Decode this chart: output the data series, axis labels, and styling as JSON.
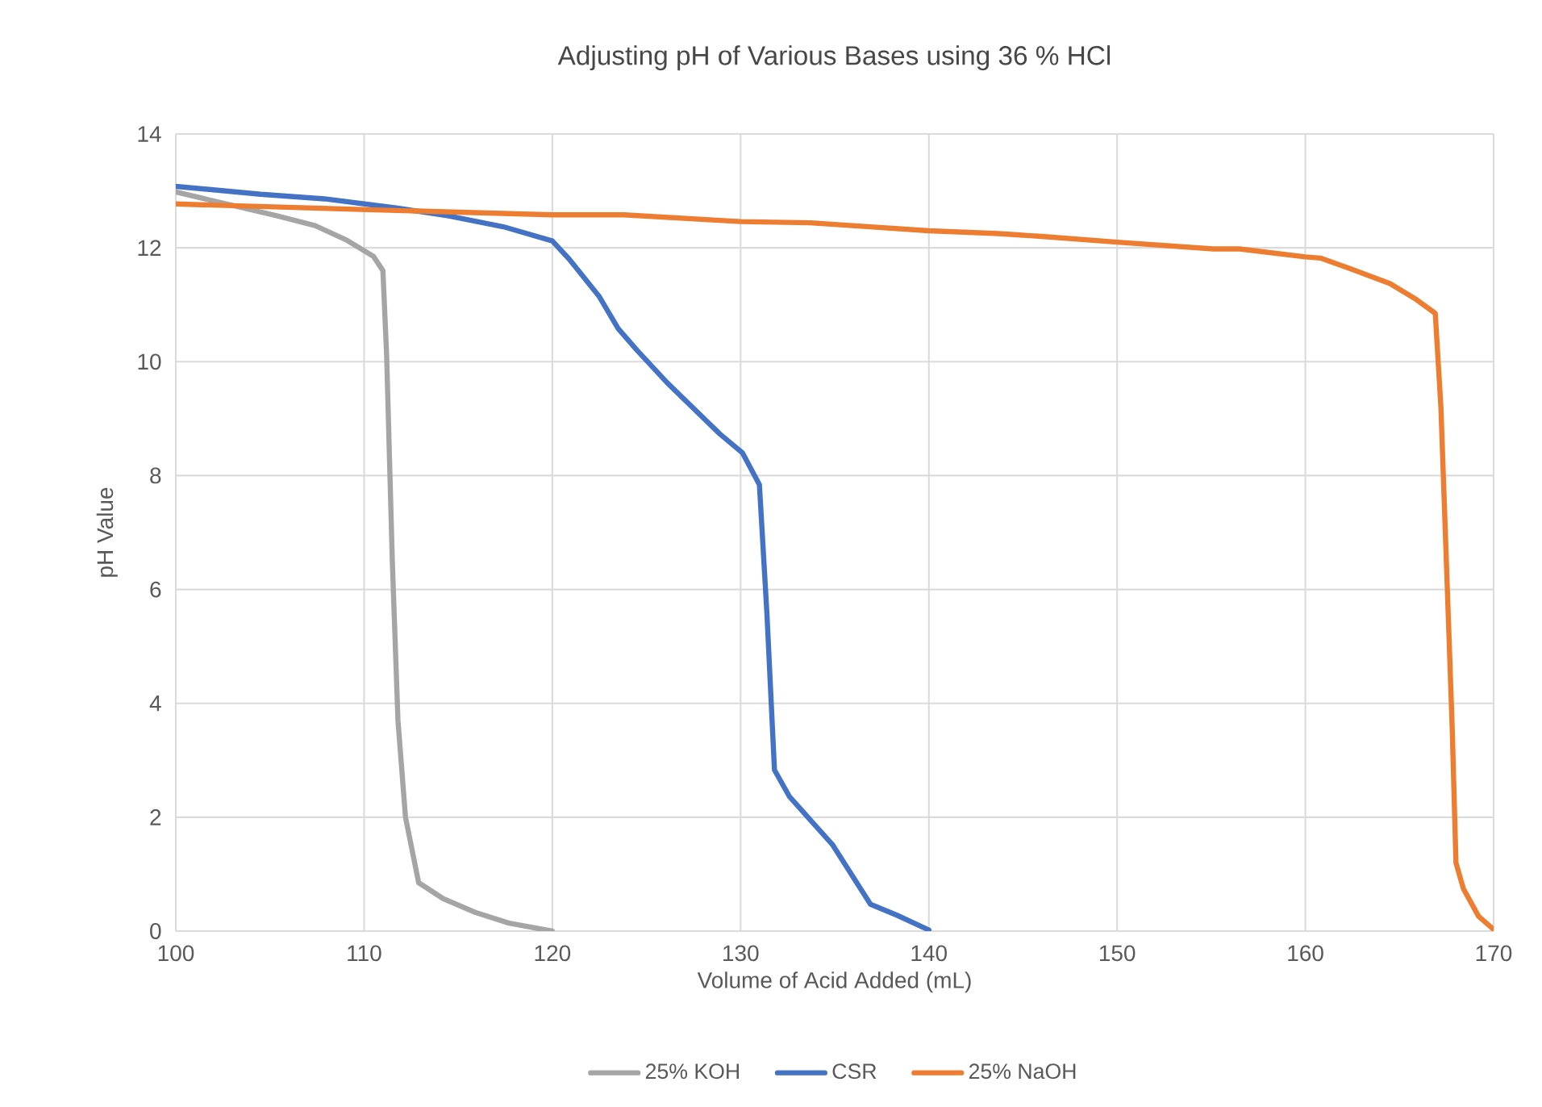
{
  "chart_data": {
    "type": "line",
    "title": "Adjusting pH of Various Bases using 36 % HCl",
    "xlabel": "Volume of Acid Added (mL)",
    "ylabel": "pH Value",
    "xlim": [
      100,
      170
    ],
    "xticks": [
      100,
      110,
      120,
      130,
      140,
      150,
      160,
      170
    ],
    "ylim": [
      0,
      14
    ],
    "yticks": [
      0,
      2,
      4,
      6,
      8,
      10,
      12,
      14
    ],
    "grid": true,
    "legend": "bottom",
    "series": [
      {
        "name": "25% KOH",
        "color": "#a5a5a5",
        "x": [
          100,
          105.4,
          107.4,
          109.1,
          110.5,
          111,
          111.2,
          111.5,
          111.8,
          112.2,
          112.9,
          114.2,
          115.9,
          117.7,
          120
        ],
        "values": [
          12.98,
          12.56,
          12.39,
          12.13,
          11.85,
          11.6,
          10.1,
          6.5,
          3.7,
          2,
          0.85,
          0.57,
          0.33,
          0.14,
          0
        ]
      },
      {
        "name": "CSR",
        "color": "#4472c4",
        "x": [
          100,
          104.5,
          107.9,
          111.7,
          114.5,
          117.4,
          120,
          120.9,
          122.5,
          123.5,
          124.5,
          126.1,
          128.9,
          130.1,
          131,
          131.4,
          131.8,
          132.6,
          134.9,
          136.9,
          138.3,
          140
        ],
        "values": [
          13.08,
          12.94,
          12.86,
          12.7,
          12.56,
          12.37,
          12.12,
          11.8,
          11.14,
          10.58,
          10.2,
          9.63,
          8.73,
          8.4,
          7.84,
          5.57,
          2.83,
          2.36,
          1.51,
          0.47,
          0.28,
          0.02
        ]
      },
      {
        "name": "25% NaOH",
        "color": "#ed7d31",
        "x": [
          100,
          110.2,
          120,
          123.8,
          130,
          133.7,
          140,
          143.7,
          146,
          150,
          155.1,
          156.5,
          160,
          160.8,
          162.5,
          164.5,
          165.9,
          166.9,
          167.2,
          167.5,
          167.8,
          168,
          168.4,
          169.2,
          170
        ],
        "values": [
          12.77,
          12.67,
          12.58,
          12.58,
          12.46,
          12.44,
          12.3,
          12.25,
          12.2,
          12.1,
          11.98,
          11.98,
          11.84,
          11.82,
          11.62,
          11.37,
          11.09,
          10.85,
          9.2,
          6.4,
          3.57,
          1.2,
          0.74,
          0.26,
          0.03
        ]
      }
    ]
  }
}
